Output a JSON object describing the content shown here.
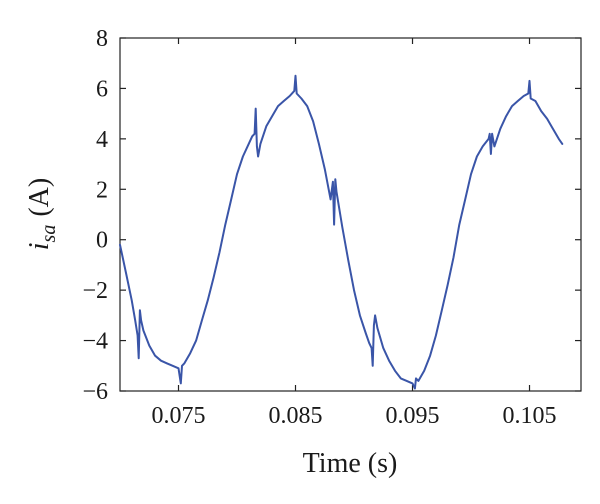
{
  "chart_data": {
    "type": "line",
    "xlabel": "Time (s)",
    "ylabel_main": "i",
    "ylabel_sub": "sa",
    "ylabel_unit": "(A)",
    "xlim": [
      0.07,
      0.1094
    ],
    "ylim": [
      -6,
      8
    ],
    "xticks": [
      0.075,
      0.085,
      0.095,
      0.105
    ],
    "xtick_labels": [
      "0.075",
      "0.085",
      "0.095",
      "0.105"
    ],
    "yticks": [
      -6,
      -4,
      -2,
      0,
      2,
      4,
      6,
      8
    ],
    "ytick_labels": [
      "−6",
      "−4",
      "−2",
      "0",
      "2",
      "4",
      "6",
      "8"
    ],
    "grid": false,
    "line_color": "#3a55a8",
    "series": [
      {
        "x": [
          0.07,
          0.0705,
          0.071,
          0.0713,
          0.0715,
          0.0716,
          0.0717,
          0.0718,
          0.072,
          0.0725,
          0.073,
          0.0735,
          0.074,
          0.0745,
          0.075,
          0.0752,
          0.0753,
          0.0755,
          0.076,
          0.0765,
          0.077,
          0.0775,
          0.078,
          0.0785,
          0.079,
          0.0795,
          0.08,
          0.0805,
          0.081,
          0.0813,
          0.0815,
          0.0816,
          0.0817,
          0.0818,
          0.082,
          0.0825,
          0.083,
          0.0835,
          0.084,
          0.0845,
          0.0849,
          0.085,
          0.0851,
          0.0855,
          0.086,
          0.0865,
          0.087,
          0.0875,
          0.088,
          0.0882,
          0.0883,
          0.0884,
          0.0885,
          0.089,
          0.0895,
          0.09,
          0.0905,
          0.091,
          0.0913,
          0.0915,
          0.0916,
          0.0917,
          0.0918,
          0.092,
          0.0925,
          0.093,
          0.0935,
          0.094,
          0.0945,
          0.095,
          0.0952,
          0.0953,
          0.0955,
          0.096,
          0.0965,
          0.097,
          0.0975,
          0.098,
          0.0985,
          0.099,
          0.0995,
          0.1,
          0.1005,
          0.101,
          0.1015,
          0.1016,
          0.1017,
          0.1018,
          0.102,
          0.1025,
          0.103,
          0.1035,
          0.104,
          0.1045,
          0.1049,
          0.105,
          0.1051,
          0.1055,
          0.106,
          0.1065,
          0.107,
          0.1075,
          0.1078
        ],
        "y": [
          -0.2,
          -1.3,
          -2.4,
          -3.2,
          -3.8,
          -4.7,
          -2.8,
          -3.2,
          -3.6,
          -4.2,
          -4.6,
          -4.8,
          -4.9,
          -5.0,
          -5.1,
          -5.7,
          -5.0,
          -4.9,
          -4.5,
          -4.0,
          -3.2,
          -2.4,
          -1.5,
          -0.5,
          0.6,
          1.6,
          2.6,
          3.3,
          3.8,
          4.1,
          4.2,
          5.2,
          3.7,
          3.3,
          3.8,
          4.5,
          4.9,
          5.3,
          5.5,
          5.7,
          5.9,
          6.5,
          5.8,
          5.6,
          5.3,
          4.7,
          3.8,
          2.8,
          1.6,
          2.3,
          0.6,
          2.4,
          1.9,
          0.5,
          -0.8,
          -2.0,
          -3.0,
          -3.7,
          -4.1,
          -4.3,
          -5.0,
          -3.4,
          -3.0,
          -3.5,
          -4.3,
          -4.8,
          -5.2,
          -5.5,
          -5.6,
          -5.7,
          -5.9,
          -5.5,
          -5.6,
          -5.2,
          -4.6,
          -3.8,
          -2.8,
          -1.8,
          -0.7,
          0.6,
          1.6,
          2.6,
          3.3,
          3.7,
          4.0,
          4.2,
          3.4,
          4.2,
          3.7,
          4.4,
          4.9,
          5.3,
          5.5,
          5.7,
          5.8,
          6.3,
          5.6,
          5.5,
          5.1,
          4.8,
          4.4,
          4.0,
          3.8
        ]
      }
    ]
  }
}
